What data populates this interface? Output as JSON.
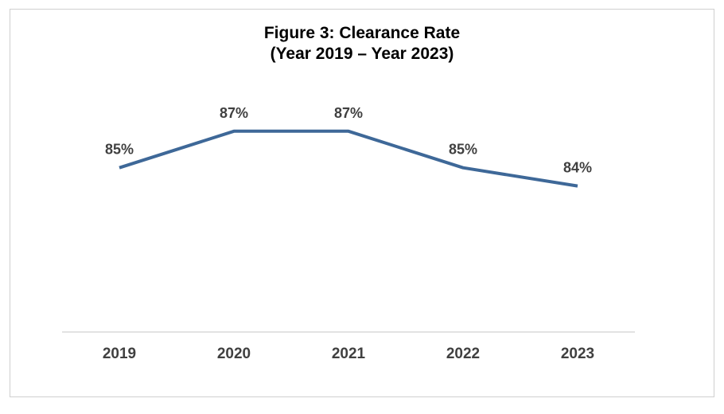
{
  "chart_data": {
    "type": "line",
    "title": "Figure 3: Clearance Rate",
    "subtitle": "(Year 2019 – Year 2023)",
    "categories": [
      "2019",
      "2020",
      "2021",
      "2022",
      "2023"
    ],
    "series": [
      {
        "values": [
          85,
          87,
          87,
          85,
          84
        ],
        "labels": [
          "85%",
          "87%",
          "87%",
          "85%",
          "84%"
        ],
        "color": "#3e6898"
      }
    ],
    "ylim": [
      76,
      89
    ],
    "grid": false,
    "legend": "none",
    "axis_color": "#d9d9d9",
    "label_color": "#404040"
  }
}
